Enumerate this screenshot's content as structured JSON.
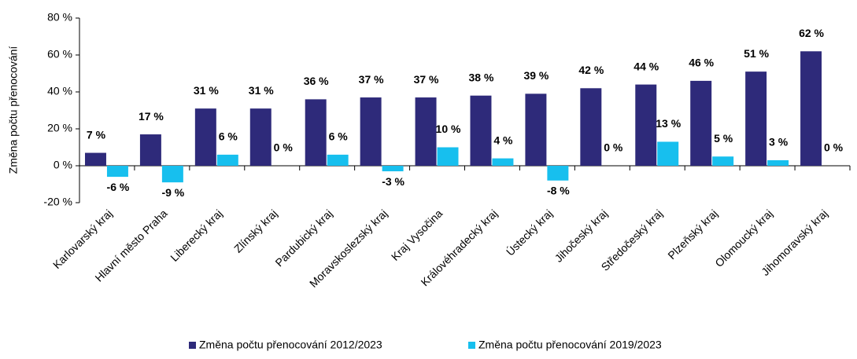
{
  "chart_data": {
    "type": "bar",
    "ylabel": "Změna počtu přenocování",
    "categories": [
      "Karlovarský kraj",
      "Hlavní město Praha",
      "Liberecký kraj",
      "Zlínský kraj",
      "Pardubický kraj",
      "Moravskoslezský kraj",
      "Kraj Vysočina",
      "Královéhradecký kraj",
      "Ústecký kraj",
      "Jihočeský kraj",
      "Středočeský kraj",
      "Plzeňský kraj",
      "Olomoucký kraj",
      "Jihomoravský kraj"
    ],
    "series": [
      {
        "name": "Změna počtu přenocování 2012/2023",
        "color": "#2e2a7a",
        "values": [
          7,
          17,
          31,
          31,
          36,
          37,
          37,
          38,
          39,
          42,
          44,
          46,
          51,
          62
        ],
        "value_labels": [
          "7 %",
          "17 %",
          "31 %",
          "31 %",
          "36 %",
          "37 %",
          "37 %",
          "38 %",
          "39 %",
          "42 %",
          "44 %",
          "46 %",
          "51 %",
          "62 %"
        ]
      },
      {
        "name": "Změna počtu přenocování 2019/2023",
        "color": "#17bfee",
        "values": [
          -6,
          -9,
          6,
          0,
          6,
          -3,
          10,
          4,
          -8,
          0,
          13,
          5,
          3,
          0
        ],
        "value_labels": [
          "-6 %",
          "-9 %",
          "6 %",
          "0 %",
          "6 %",
          "-3 %",
          "10 %",
          "4 %",
          "-8 %",
          "0 %",
          "13 %",
          "5 %",
          "3 %",
          "0 %"
        ]
      }
    ],
    "ylim": [
      -20,
      80
    ],
    "yticks": [
      {
        "value": -20,
        "label": "-20 %"
      },
      {
        "value": 0,
        "label": "0 %"
      },
      {
        "value": 20,
        "label": "20 %"
      },
      {
        "value": 40,
        "label": "40 %"
      },
      {
        "value": 60,
        "label": "60 %"
      },
      {
        "value": 80,
        "label": "80 %"
      }
    ],
    "legend": "bottom"
  }
}
